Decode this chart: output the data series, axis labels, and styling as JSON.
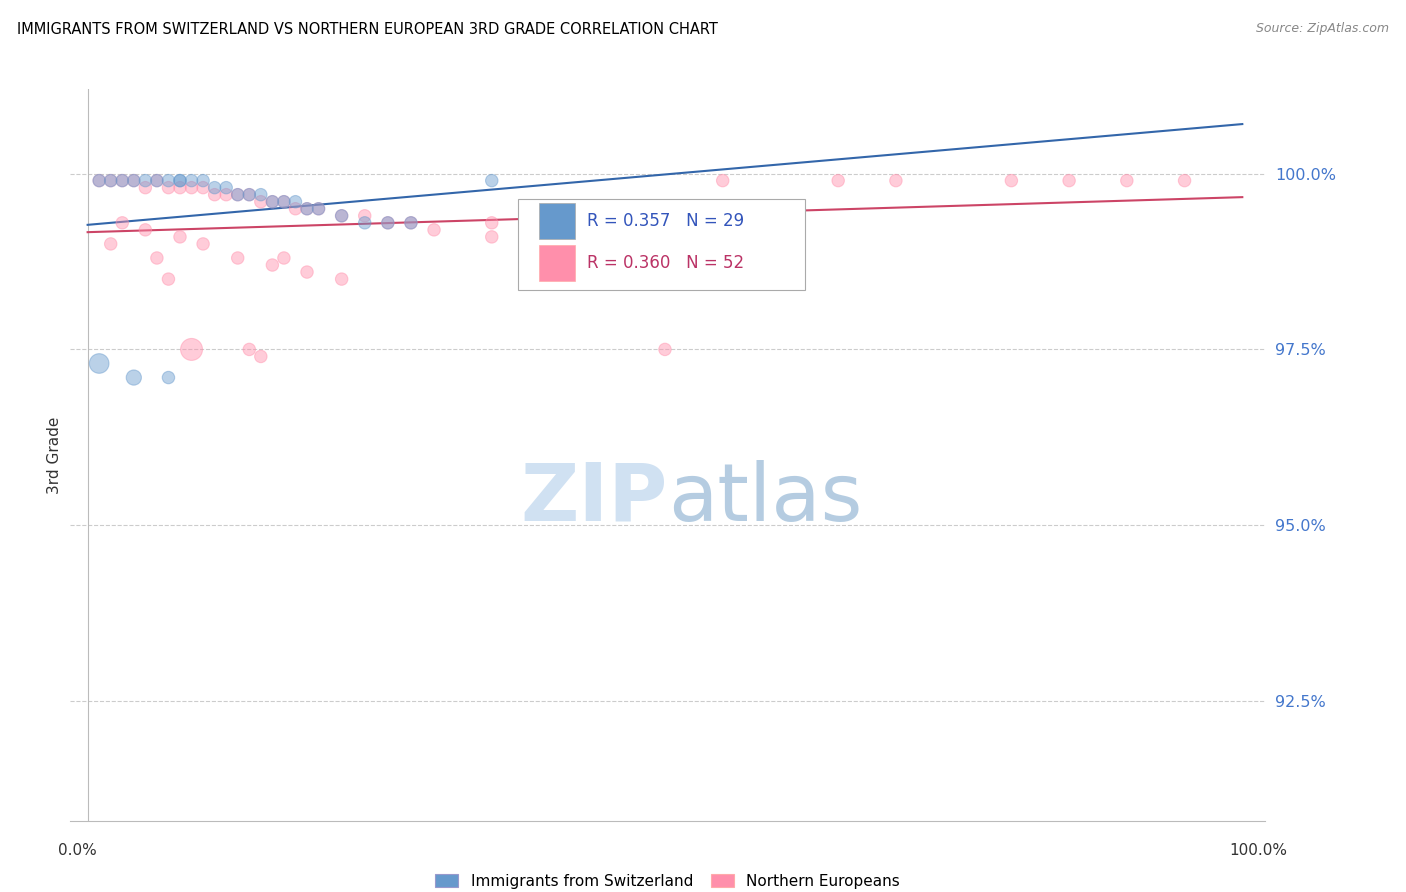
{
  "title": "IMMIGRANTS FROM SWITZERLAND VS NORTHERN EUROPEAN 3RD GRADE CORRELATION CHART",
  "source": "Source: ZipAtlas.com",
  "ylabel": "3rd Grade",
  "ytick_labels": [
    "100.0%",
    "97.5%",
    "95.0%",
    "92.5%"
  ],
  "ytick_values": [
    1.0,
    0.975,
    0.95,
    0.925
  ],
  "ymin": 0.908,
  "ymax": 1.012,
  "xmin": -0.015,
  "xmax": 1.02,
  "series1_label": "Immigrants from Switzerland",
  "series2_label": "Northern Europeans",
  "blue_color": "#6699CC",
  "pink_color": "#FF8FAB",
  "blue_line_color": "#3366AA",
  "pink_line_color": "#CC4466",
  "legend_blue_text_R": "0.357",
  "legend_blue_text_N": "29",
  "legend_pink_text_R": "0.360",
  "legend_pink_text_N": "52",
  "watermark_zip_color": "#C8DCF0",
  "watermark_atlas_color": "#A8C4DC",
  "blue_x": [
    0.01,
    0.02,
    0.03,
    0.04,
    0.05,
    0.06,
    0.07,
    0.08,
    0.08,
    0.09,
    0.1,
    0.11,
    0.12,
    0.13,
    0.14,
    0.15,
    0.16,
    0.17,
    0.18,
    0.19,
    0.2,
    0.22,
    0.24,
    0.26,
    0.28,
    0.01,
    0.04,
    0.07,
    0.35
  ],
  "blue_y": [
    0.999,
    0.999,
    0.999,
    0.999,
    0.999,
    0.999,
    0.999,
    0.999,
    0.999,
    0.999,
    0.999,
    0.998,
    0.998,
    0.997,
    0.997,
    0.997,
    0.996,
    0.996,
    0.996,
    0.995,
    0.995,
    0.994,
    0.993,
    0.993,
    0.993,
    0.973,
    0.971,
    0.971,
    0.999
  ],
  "blue_s": [
    80,
    80,
    80,
    80,
    80,
    80,
    80,
    80,
    80,
    80,
    80,
    80,
    80,
    80,
    80,
    80,
    80,
    80,
    80,
    80,
    80,
    80,
    80,
    80,
    80,
    200,
    120,
    80,
    80
  ],
  "pink_x": [
    0.01,
    0.02,
    0.03,
    0.04,
    0.05,
    0.06,
    0.07,
    0.08,
    0.09,
    0.1,
    0.11,
    0.12,
    0.13,
    0.14,
    0.15,
    0.16,
    0.17,
    0.18,
    0.19,
    0.2,
    0.22,
    0.24,
    0.26,
    0.28,
    0.3,
    0.35,
    0.4,
    0.55,
    0.65,
    0.7,
    0.8,
    0.85,
    0.9,
    0.95,
    0.03,
    0.05,
    0.08,
    0.1,
    0.13,
    0.16,
    0.17,
    0.19,
    0.22,
    0.35,
    0.4,
    0.02,
    0.06,
    0.07,
    0.14,
    0.15,
    0.5,
    0.09
  ],
  "pink_y": [
    0.999,
    0.999,
    0.999,
    0.999,
    0.998,
    0.999,
    0.998,
    0.998,
    0.998,
    0.998,
    0.997,
    0.997,
    0.997,
    0.997,
    0.996,
    0.996,
    0.996,
    0.995,
    0.995,
    0.995,
    0.994,
    0.994,
    0.993,
    0.993,
    0.992,
    0.991,
    0.99,
    0.999,
    0.999,
    0.999,
    0.999,
    0.999,
    0.999,
    0.999,
    0.993,
    0.992,
    0.991,
    0.99,
    0.988,
    0.987,
    0.988,
    0.986,
    0.985,
    0.993,
    0.988,
    0.99,
    0.988,
    0.985,
    0.975,
    0.974,
    0.975,
    0.975
  ],
  "pink_s": [
    80,
    80,
    80,
    80,
    80,
    80,
    80,
    80,
    80,
    80,
    80,
    80,
    80,
    80,
    80,
    80,
    80,
    80,
    80,
    80,
    80,
    80,
    80,
    80,
    80,
    80,
    80,
    80,
    80,
    80,
    80,
    80,
    80,
    80,
    80,
    80,
    80,
    80,
    80,
    80,
    80,
    80,
    80,
    80,
    80,
    80,
    80,
    80,
    80,
    80,
    80,
    250
  ]
}
